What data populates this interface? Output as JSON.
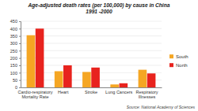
{
  "chart_data": {
    "type": "bar",
    "title": "Age-adjusted death rates (per 100,000) by cause in China\n1991 -2000",
    "categories": [
      "Cardio-respiratory Mortality Rate",
      "Heart",
      "Stroke",
      "Lung Cancers",
      "Respiratory Illnesses"
    ],
    "series": [
      {
        "name": "South",
        "color": "#f5a623",
        "values": [
          355,
          110,
          105,
          20,
          120
        ]
      },
      {
        "name": "North",
        "color": "#e8231e",
        "values": [
          400,
          150,
          135,
          28,
          95
        ]
      }
    ],
    "ylim": [
      0,
      450
    ],
    "yticks": [
      0,
      50,
      100,
      150,
      200,
      250,
      300,
      350,
      400,
      450
    ],
    "grid": true,
    "legend": "right",
    "annotations": [
      "Source: National Academy of Sciences"
    ]
  }
}
